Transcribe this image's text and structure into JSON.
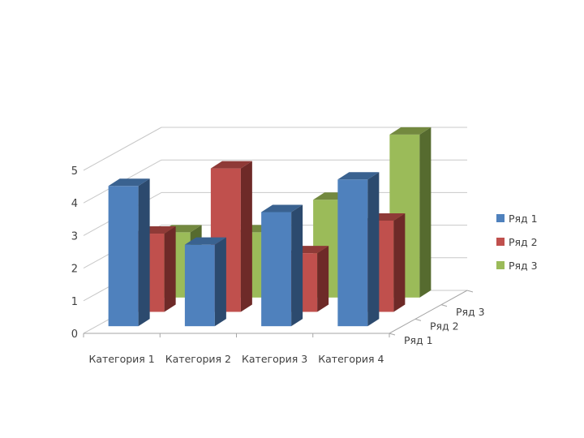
{
  "chart_data": {
    "type": "bar",
    "subtype": "3d-column",
    "title": "",
    "xlabel": "",
    "ylabel": "",
    "categories": [
      "Категория 1",
      "Категория 2",
      "Категория 3",
      "Категория 4"
    ],
    "series": [
      {
        "name": "Ряд 1",
        "values": [
          4.3,
          2.5,
          3.5,
          4.5
        ]
      },
      {
        "name": "Ряд 2",
        "values": [
          2.4,
          4.4,
          1.8,
          2.8
        ]
      },
      {
        "name": "Ряд 3",
        "values": [
          2,
          2,
          3,
          5
        ]
      }
    ],
    "depth_labels": [
      "Ряд 1",
      "Ряд 2",
      "Ряд 3"
    ],
    "y_ticks": [
      "0",
      "1",
      "2",
      "3",
      "4",
      "5"
    ],
    "ylim": [
      0,
      5
    ],
    "grid": true,
    "legend_position": "right",
    "colors": {
      "series": [
        "#4f81bd",
        "#c0504d",
        "#9bbb59"
      ],
      "side": [
        "#2c4a6e",
        "#6e2a28",
        "#566b2f"
      ],
      "top": [
        "#3a6290",
        "#8f3a37",
        "#73893f"
      ],
      "grid": "#c8c8c8",
      "axis": "#a6a6a6"
    }
  }
}
